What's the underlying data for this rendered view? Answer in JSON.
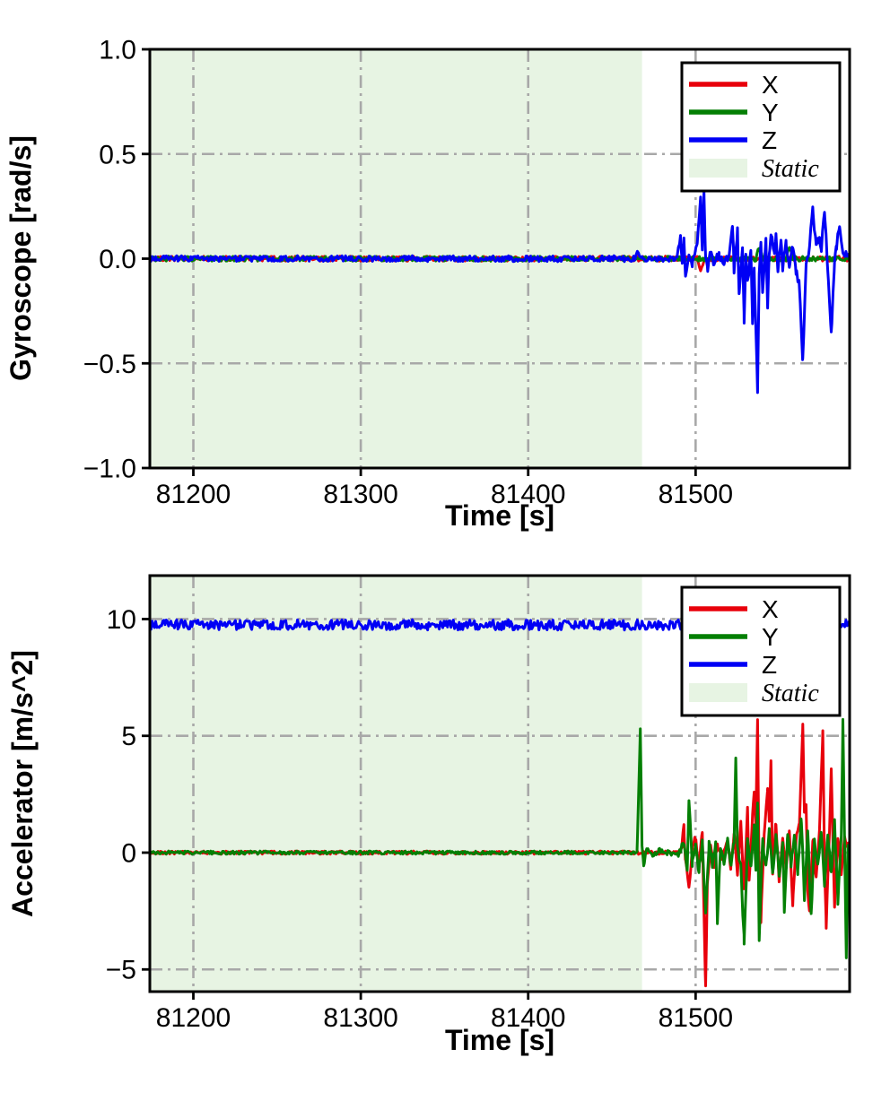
{
  "figure_background": "#ffffff",
  "chart_data": [
    {
      "type": "line",
      "title": "",
      "xlabel": "Time [s]",
      "ylabel": "Gyroscope [rad/s]",
      "xlim": [
        81174,
        81592
      ],
      "ylim": [
        -1.0,
        1.0
      ],
      "xticks": [
        81200,
        81300,
        81400,
        81500
      ],
      "xtick_labels": [
        "81200",
        "81300",
        "81400",
        "81500"
      ],
      "yticks": [
        1.0,
        0.5,
        0.0,
        -0.5,
        -1.0
      ],
      "ytick_labels": [
        "1.0",
        "0.5",
        "0.0",
        "−0.5",
        "−1.0"
      ],
      "grid": {
        "on": true,
        "color": "#a8a8a8",
        "style": "dash-dot"
      },
      "static_region": {
        "start": 81174,
        "end": 81468,
        "color": "#e7f4e3",
        "label": "Static"
      },
      "legend": {
        "position": "upper right",
        "entries": [
          {
            "label": "X",
            "color": "#e8000b",
            "type": "line"
          },
          {
            "label": "Y",
            "color": "#047f04",
            "type": "line"
          },
          {
            "label": "Z",
            "color": "#0000f5",
            "type": "line"
          },
          {
            "label": "Static",
            "color": "#e7f4e3",
            "type": "patch"
          }
        ]
      },
      "series": [
        {
          "name": "X",
          "color": "#e8000b",
          "keypoints": [
            [
              81174,
              0
            ],
            [
              81501,
              0
            ],
            [
              81503,
              -0.06
            ],
            [
              81505,
              0
            ],
            [
              81592,
              0
            ]
          ],
          "noise": [
            [
              81174,
              81592,
              0.012
            ]
          ]
        },
        {
          "name": "Y",
          "color": "#047f04",
          "keypoints": [
            [
              81174,
              0
            ],
            [
              81536,
              0
            ],
            [
              81538,
              0.06
            ],
            [
              81540,
              0
            ],
            [
              81554,
              0
            ],
            [
              81556,
              0.05
            ],
            [
              81558,
              0
            ],
            [
              81592,
              0
            ]
          ],
          "noise": [
            [
              81174,
              81592,
              0.012
            ]
          ]
        },
        {
          "name": "Z",
          "color": "#0000f5",
          "keypoints": [
            [
              81174,
              0
            ],
            [
              81463,
              0
            ],
            [
              81466,
              0.03
            ],
            [
              81468,
              0
            ],
            [
              81489,
              0
            ],
            [
              81491,
              0.1
            ],
            [
              81492,
              -0.03
            ],
            [
              81493,
              0.11
            ],
            [
              81494,
              -0.1
            ],
            [
              81496,
              0.03
            ],
            [
              81498,
              -0.02
            ],
            [
              81501,
              0.06
            ],
            [
              81503,
              0.31
            ],
            [
              81504,
              0.04
            ],
            [
              81505,
              0.33
            ],
            [
              81506,
              0
            ],
            [
              81507,
              -0.05
            ],
            [
              81509,
              0.03
            ],
            [
              81511,
              -0.02
            ],
            [
              81514,
              0.02
            ],
            [
              81517,
              -0.03
            ],
            [
              81520,
              0.02
            ],
            [
              81522,
              0.17
            ],
            [
              81523,
              -0.05
            ],
            [
              81525,
              0.13
            ],
            [
              81526,
              -0.17
            ],
            [
              81528,
              0.06
            ],
            [
              81529,
              -0.31
            ],
            [
              81530,
              0.02
            ],
            [
              81531,
              -0.12
            ],
            [
              81533,
              0.05
            ],
            [
              81534,
              -0.3
            ],
            [
              81535,
              -0.06
            ],
            [
              81537,
              -0.63
            ],
            [
              81538,
              -0.08
            ],
            [
              81539,
              0.06
            ],
            [
              81540,
              -0.15
            ],
            [
              81542,
              0.09
            ],
            [
              81543,
              -0.22
            ],
            [
              81544,
              0.02
            ],
            [
              81545,
              0.12
            ],
            [
              81547,
              0.02
            ],
            [
              81548,
              0.11
            ],
            [
              81549,
              -0.06
            ],
            [
              81551,
              0.09
            ],
            [
              81552,
              -0.04
            ],
            [
              81554,
              0.07
            ],
            [
              81556,
              -0.05
            ],
            [
              81558,
              0.06
            ],
            [
              81560,
              -0.06
            ],
            [
              81562,
              -0.12
            ],
            [
              81564,
              -0.49
            ],
            [
              81566,
              -0.04
            ],
            [
              81568,
              0.06
            ],
            [
              81570,
              0.23
            ],
            [
              81572,
              0.06
            ],
            [
              81574,
              0.1
            ],
            [
              81575,
              0.04
            ],
            [
              81577,
              0.24
            ],
            [
              81579,
              -0.05
            ],
            [
              81581,
              -0.36
            ],
            [
              81583,
              -0.02
            ],
            [
              81584,
              0.05
            ],
            [
              81586,
              0.16
            ],
            [
              81588,
              0.02
            ],
            [
              81592,
              0.01
            ]
          ],
          "noise": [
            [
              81174,
              81489,
              0.014
            ],
            [
              81489,
              81592,
              0.02
            ]
          ]
        }
      ]
    },
    {
      "type": "line",
      "title": "",
      "xlabel": "Time [s]",
      "ylabel": "Accelerator [m/s^2]",
      "xlim": [
        81174,
        81592
      ],
      "ylim": [
        -5.95,
        11.86
      ],
      "xticks": [
        81200,
        81300,
        81400,
        81500
      ],
      "xtick_labels": [
        "81200",
        "81300",
        "81400",
        "81500"
      ],
      "yticks": [
        10,
        5,
        0,
        -5
      ],
      "ytick_labels": [
        "10",
        "5",
        "0",
        "−5"
      ],
      "grid": {
        "on": true,
        "color": "#a8a8a8",
        "style": "dash-dot"
      },
      "static_region": {
        "start": 81174,
        "end": 81468,
        "color": "#e7f4e3",
        "label": "Static"
      },
      "legend": {
        "position": "upper right",
        "entries": [
          {
            "label": "X",
            "color": "#e8000b",
            "type": "line"
          },
          {
            "label": "Y",
            "color": "#047f04",
            "type": "line"
          },
          {
            "label": "Z",
            "color": "#0000f5",
            "type": "line"
          },
          {
            "label": "Static",
            "color": "#e7f4e3",
            "type": "patch"
          }
        ]
      },
      "series": [
        {
          "name": "X",
          "color": "#e8000b",
          "keypoints": [
            [
              81174,
              0
            ],
            [
              81490,
              0
            ],
            [
              81492,
              0.4
            ],
            [
              81493,
              1.1
            ],
            [
              81494,
              -0.3
            ],
            [
              81496,
              -1.6
            ],
            [
              81498,
              0.3
            ],
            [
              81500,
              0.6
            ],
            [
              81502,
              -0.6
            ],
            [
              81504,
              1.0
            ],
            [
              81506,
              -5.8
            ],
            [
              81507,
              -1.2
            ],
            [
              81509,
              0.4
            ],
            [
              81511,
              -0.5
            ],
            [
              81513,
              0.3
            ],
            [
              81516,
              -0.3
            ],
            [
              81519,
              0.6
            ],
            [
              81521,
              -0.7
            ],
            [
              81523,
              0.9
            ],
            [
              81525,
              -0.9
            ],
            [
              81527,
              1.3
            ],
            [
              81529,
              -1.6
            ],
            [
              81531,
              1.9
            ],
            [
              81532,
              -1.1
            ],
            [
              81534,
              1.5
            ],
            [
              81535,
              2.6
            ],
            [
              81536,
              1.2
            ],
            [
              81537,
              5.8
            ],
            [
              81538,
              -1.2
            ],
            [
              81539,
              -2.9
            ],
            [
              81541,
              0.9
            ],
            [
              81543,
              2.6
            ],
            [
              81544,
              1.3
            ],
            [
              81545,
              3.9
            ],
            [
              81546,
              -0.9
            ],
            [
              81548,
              1.3
            ],
            [
              81550,
              -1.3
            ],
            [
              81552,
              0.7
            ],
            [
              81554,
              -0.6
            ],
            [
              81556,
              0.9
            ],
            [
              81558,
              -2.3
            ],
            [
              81560,
              0.6
            ],
            [
              81562,
              1.2
            ],
            [
              81564,
              5.5
            ],
            [
              81565,
              1.6
            ],
            [
              81566,
              2.2
            ],
            [
              81567,
              -1.6
            ],
            [
              81568,
              -2.6
            ],
            [
              81570,
              0.6
            ],
            [
              81572,
              -1.1
            ],
            [
              81574,
              0.9
            ],
            [
              81576,
              5.3
            ],
            [
              81577,
              -0.6
            ],
            [
              81578,
              -3.1
            ],
            [
              81580,
              1.1
            ],
            [
              81581,
              3.7
            ],
            [
              81583,
              -2.4
            ],
            [
              81585,
              0.6
            ],
            [
              81587,
              -0.9
            ],
            [
              81589,
              0.6
            ],
            [
              81592,
              0.2
            ]
          ],
          "noise": [
            [
              81174,
              81490,
              0.07
            ],
            [
              81490,
              81592,
              0.15
            ]
          ]
        },
        {
          "name": "Y",
          "color": "#047f04",
          "keypoints": [
            [
              81174,
              0
            ],
            [
              81465,
              0
            ],
            [
              81467,
              5.3
            ],
            [
              81468,
              0.3
            ],
            [
              81469,
              -0.5
            ],
            [
              81471,
              0.2
            ],
            [
              81474,
              -0.15
            ],
            [
              81478,
              0.1
            ],
            [
              81483,
              0
            ],
            [
              81490,
              -0.1
            ],
            [
              81493,
              0.5
            ],
            [
              81495,
              -0.7
            ],
            [
              81496,
              2.3
            ],
            [
              81498,
              -0.5
            ],
            [
              81500,
              0.4
            ],
            [
              81502,
              -0.8
            ],
            [
              81504,
              0.5
            ],
            [
              81506,
              -2.6
            ],
            [
              81508,
              0.4
            ],
            [
              81510,
              -0.5
            ],
            [
              81512,
              0.4
            ],
            [
              81513,
              -2.9
            ],
            [
              81515,
              0.3
            ],
            [
              81517,
              -0.4
            ],
            [
              81519,
              0.5
            ],
            [
              81521,
              -0.5
            ],
            [
              81523,
              0.4
            ],
            [
              81524,
              4.1
            ],
            [
              81525,
              0.4
            ],
            [
              81527,
              -0.6
            ],
            [
              81529,
              -3.8
            ],
            [
              81531,
              0.5
            ],
            [
              81533,
              -0.7
            ],
            [
              81535,
              1.1
            ],
            [
              81536,
              -0.6
            ],
            [
              81537,
              2.1
            ],
            [
              81538,
              -3.6
            ],
            [
              81540,
              0.5
            ],
            [
              81542,
              -0.7
            ],
            [
              81544,
              0.9
            ],
            [
              81546,
              -0.8
            ],
            [
              81548,
              0.6
            ],
            [
              81550,
              -0.9
            ],
            [
              81552,
              0.5
            ],
            [
              81553,
              -2.4
            ],
            [
              81555,
              0.8
            ],
            [
              81557,
              -0.6
            ],
            [
              81559,
              0.7
            ],
            [
              81561,
              -0.8
            ],
            [
              81563,
              1.6
            ],
            [
              81565,
              -1.9
            ],
            [
              81567,
              0.9
            ],
            [
              81569,
              -2.7
            ],
            [
              81571,
              0.6
            ],
            [
              81573,
              -0.6
            ],
            [
              81575,
              0.9
            ],
            [
              81577,
              -1.3
            ],
            [
              81579,
              0.7
            ],
            [
              81581,
              -0.9
            ],
            [
              81583,
              1.3
            ],
            [
              81585,
              -2.1
            ],
            [
              81587,
              0.8
            ],
            [
              81588,
              5.7
            ],
            [
              81590,
              -4.6
            ],
            [
              81591,
              0.3
            ],
            [
              81592,
              0
            ]
          ],
          "noise": [
            [
              81174,
              81465,
              0.07
            ],
            [
              81469,
              81490,
              0.1
            ],
            [
              81490,
              81592,
              0.18
            ]
          ]
        },
        {
          "name": "Z",
          "color": "#0000f5",
          "keypoints": [
            [
              81174,
              9.75
            ],
            [
              81592,
              9.75
            ]
          ],
          "noise": [
            [
              81174,
              81592,
              0.22
            ]
          ]
        }
      ]
    }
  ]
}
